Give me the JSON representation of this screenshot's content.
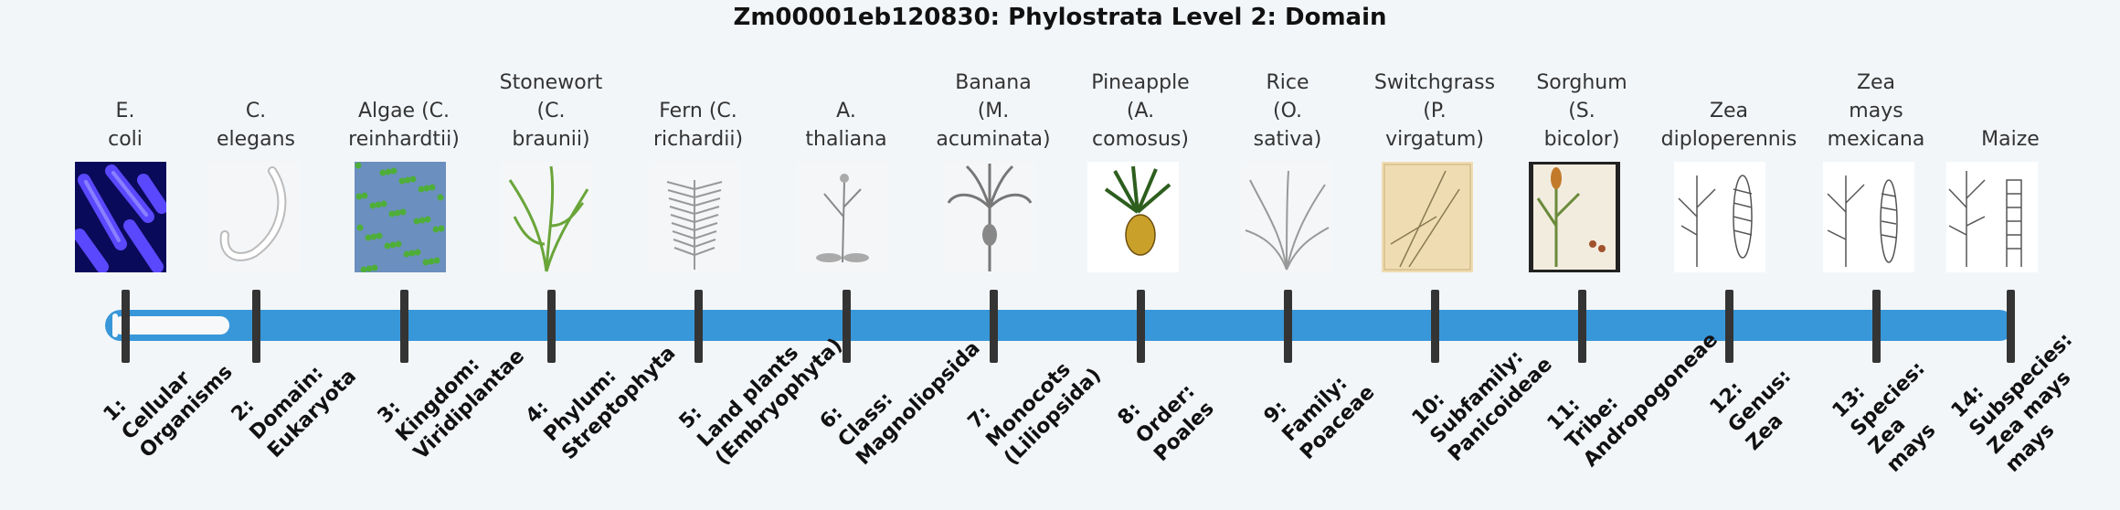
{
  "title": "Zm00001eb120830: Phylostrata Level 2: Domain",
  "slider": {
    "value_index": 2,
    "min": 1,
    "max": 14
  },
  "steps": [
    {
      "organism": [
        "E.",
        "coli"
      ],
      "label": [
        "1:",
        "Cellular",
        "Organisms"
      ],
      "icon": "bacteria-image"
    },
    {
      "organism": [
        "C.",
        "elegans"
      ],
      "label": [
        "2:",
        "Domain:",
        "Eukaryota"
      ],
      "icon": "worm-image"
    },
    {
      "organism": [
        "Algae (C.",
        "reinhardtii)"
      ],
      "label": [
        "3:",
        "Kingdom:",
        "Viridiplantae"
      ],
      "icon": "algae-image"
    },
    {
      "organism": [
        "Stonewort",
        "(C.",
        "braunii)"
      ],
      "label": [
        "4:",
        "Phylum:",
        "Streptophyta"
      ],
      "icon": "stonewort-image"
    },
    {
      "organism": [
        "Fern (C.",
        "richardii)"
      ],
      "label": [
        "5:",
        "Land plants",
        "(Embryophyta)"
      ],
      "icon": "fern-image"
    },
    {
      "organism": [
        "A.",
        "thaliana"
      ],
      "label": [
        "6:",
        "Class:",
        "Magnoliopsida"
      ],
      "icon": "arabidopsis-image"
    },
    {
      "organism": [
        "Banana",
        "(M.",
        "acuminata)"
      ],
      "label": [
        "7:",
        "Monocots",
        "(Liliopsida)"
      ],
      "icon": "banana-image"
    },
    {
      "organism": [
        "Pineapple",
        "(A.",
        "comosus)"
      ],
      "label": [
        "8:",
        "Order:",
        "Poales"
      ],
      "icon": "pineapple-image"
    },
    {
      "organism": [
        "Rice",
        "(O.",
        "sativa)"
      ],
      "label": [
        "9:",
        "Family:",
        "Poaceae"
      ],
      "icon": "rice-image"
    },
    {
      "organism": [
        "Switchgrass",
        "(P.",
        "virgatum)"
      ],
      "label": [
        "10:",
        "Subfamily:",
        "Panicoideae"
      ],
      "icon": "switchgrass-image"
    },
    {
      "organism": [
        "Sorghum",
        "(S.",
        "bicolor)"
      ],
      "label": [
        "11:",
        "Tribe:",
        "Andropogoneae"
      ],
      "icon": "sorghum-image"
    },
    {
      "organism": [
        "Zea",
        "diploperennis"
      ],
      "label": [
        "12:",
        "Genus:",
        "Zea"
      ],
      "icon": "zea-diploperennis-image"
    },
    {
      "organism": [
        "Zea",
        "mays",
        "mexicana"
      ],
      "label": [
        "13:",
        "Species:",
        "Zea",
        "mays"
      ],
      "icon": "zea-mexicana-image"
    },
    {
      "organism": [
        "Maize"
      ],
      "label": [
        "14:",
        "Subspecies:",
        "Zea mays",
        "mays"
      ],
      "icon": "maize-image"
    }
  ],
  "colors": {
    "track": "#3897d9",
    "tick": "#343434",
    "background": "#f3f6f9"
  }
}
